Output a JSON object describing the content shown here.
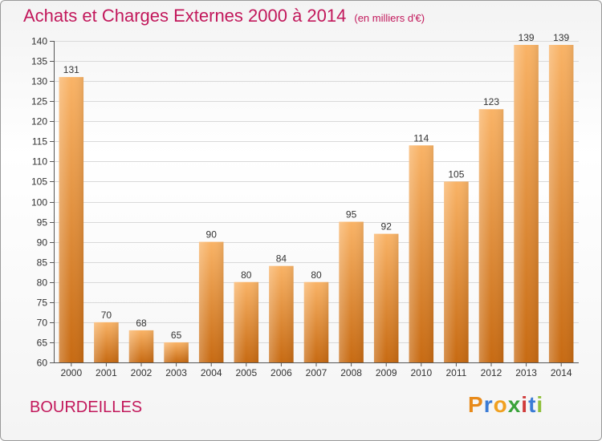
{
  "header": {
    "title": "Achats et Charges Externes 2000 à 2014",
    "subtitle": "(en milliers d'€)"
  },
  "footer": {
    "town": "BOURDEILLES",
    "logo": {
      "letters": [
        "P",
        "r",
        "o",
        "x",
        "i",
        "t",
        "i"
      ],
      "colors": [
        "#e88a1a",
        "#3a7bd5",
        "#f0a020",
        "#3aa33a",
        "#d03a3a",
        "#3a7bd5",
        "#8fc03a"
      ]
    }
  },
  "chart_data": {
    "type": "bar",
    "title": "Achats et Charges Externes 2000 à 2014",
    "subtitle": "(en milliers d'€)",
    "categories": [
      "2000",
      "2001",
      "2002",
      "2003",
      "2004",
      "2005",
      "2006",
      "2007",
      "2008",
      "2009",
      "2010",
      "2011",
      "2012",
      "2013",
      "2014"
    ],
    "values": [
      131,
      70,
      68,
      65,
      90,
      80,
      84,
      80,
      95,
      92,
      114,
      105,
      123,
      139,
      139
    ],
    "ylim": [
      60,
      140
    ],
    "ytick_step": 5,
    "grid": true,
    "bar_color": "#f0922e",
    "bar_color_light": "#f9b366",
    "bar_color_dark": "#c76a12"
  }
}
